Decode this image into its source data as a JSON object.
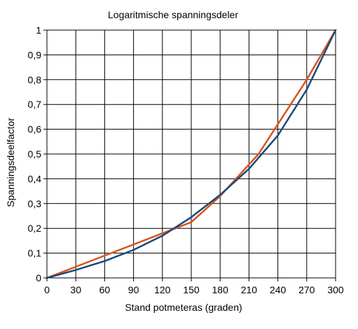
{
  "chart_data": {
    "type": "line",
    "title": "Logaritmische spanningsdeler",
    "xlabel": "Stand potmeteras (graden)",
    "ylabel": "Spanningsdeelfactor",
    "xlim": [
      0,
      300
    ],
    "ylim": [
      0,
      1
    ],
    "x_ticks": [
      0,
      30,
      60,
      90,
      120,
      150,
      180,
      210,
      240,
      270,
      300
    ],
    "x_tick_labels": [
      "0",
      "30",
      "60",
      "90",
      "120",
      "150",
      "180",
      "210",
      "240",
      "270",
      "300"
    ],
    "y_ticks": [
      0,
      0.1,
      0.2,
      0.3,
      0.4,
      0.5,
      0.6,
      0.7,
      0.8,
      0.9,
      1
    ],
    "y_tick_labels": [
      "0",
      "0,1",
      "0,2",
      "0,3",
      "0,4",
      "0,5",
      "0,6",
      "0,7",
      "0,8",
      "0,9",
      "1"
    ],
    "grid": true,
    "legend": "none",
    "series": [
      {
        "color": "#d9541e",
        "x": [
          0,
          150,
          180,
          220,
          270,
          300
        ],
        "y": [
          0,
          0.225,
          0.33,
          0.5,
          0.8,
          1.0
        ]
      },
      {
        "color": "#1a4a7a",
        "x": [
          0,
          30,
          60,
          90,
          120,
          150,
          180,
          210,
          240,
          270,
          300
        ],
        "y": [
          0,
          0.032,
          0.068,
          0.113,
          0.17,
          0.245,
          0.335,
          0.44,
          0.575,
          0.76,
          1.0
        ]
      }
    ]
  }
}
